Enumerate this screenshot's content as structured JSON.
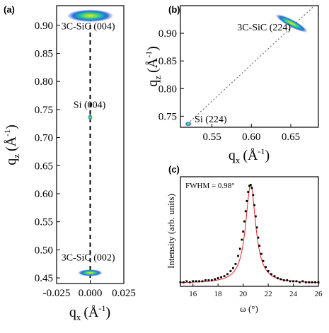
{
  "chart_data": [
    {
      "panel_label": "(a)",
      "type": "scatter",
      "subtype": "reciprocal-space-map",
      "xlabel_base": "q",
      "xlabel_sub": "x",
      "xlabel_unit": "(Å",
      "xlabel_exp": "-1",
      "xlabel_close": ")",
      "ylabel_base": "q",
      "ylabel_sub": "z",
      "ylabel_unit": "(Å",
      "ylabel_exp": "-1",
      "ylabel_close": ")",
      "xlim": [
        -0.025,
        0.025
      ],
      "ylim": [
        0.44,
        0.935
      ],
      "xticks": [
        {
          "v": -0.025,
          "label": "-0.025"
        },
        {
          "v": 0.0,
          "label": "0.000"
        },
        {
          "v": 0.025,
          "label": "0.025"
        }
      ],
      "yticks": [
        {
          "v": 0.45,
          "label": "0.45"
        },
        {
          "v": 0.5,
          "label": "0.50"
        },
        {
          "v": 0.55,
          "label": "0.55"
        },
        {
          "v": 0.6,
          "label": "0.60"
        },
        {
          "v": 0.65,
          "label": "0.65"
        },
        {
          "v": 0.7,
          "label": "0.70"
        },
        {
          "v": 0.75,
          "label": "0.75"
        },
        {
          "v": 0.8,
          "label": "0.80"
        },
        {
          "v": 0.85,
          "label": "0.85"
        },
        {
          "v": 0.9,
          "label": "0.90"
        }
      ],
      "reference_line": {
        "x": 0.0,
        "from": 0.45,
        "to": 0.92,
        "style": "dashed"
      },
      "peaks": [
        {
          "label": "3C-SiC (004)",
          "qx": 0.0,
          "qz": 0.917,
          "width_qx": 0.034,
          "width_qz": 0.022
        },
        {
          "label": "Si (004)",
          "qx": 0.0,
          "qz": 0.736,
          "width_qx": 0.002,
          "width_qz": 0.01
        },
        {
          "label": "3C-SiC (002)",
          "qx": 0.0,
          "qz": 0.459,
          "width_qx": 0.018,
          "width_qz": 0.012
        }
      ],
      "annotations": [
        {
          "text": "3C-SiC (004)",
          "x": -0.0015,
          "y": 0.893
        },
        {
          "text": "Si (004)",
          "x": -0.0005,
          "y": 0.753
        },
        {
          "text": "3C-SiC (002)",
          "x": -0.0015,
          "y": 0.481
        }
      ]
    },
    {
      "panel_label": "(b)",
      "type": "scatter",
      "subtype": "reciprocal-space-map",
      "xlabel_base": "q",
      "xlabel_sub": "x",
      "xlabel_unit": "(Å",
      "xlabel_exp": "-1",
      "xlabel_close": ")",
      "ylabel_base": "q",
      "ylabel_sub": "z",
      "ylabel_unit": "(Å",
      "ylabel_exp": "-1",
      "ylabel_close": ")",
      "xlim": [
        0.51,
        0.685
      ],
      "ylim": [
        0.73,
        0.95
      ],
      "xticks": [
        {
          "v": 0.55,
          "label": "0.55"
        },
        {
          "v": 0.6,
          "label": "0.60"
        },
        {
          "v": 0.65,
          "label": "0.65"
        }
      ],
      "yticks": [
        {
          "v": 0.75,
          "label": "0.75"
        },
        {
          "v": 0.8,
          "label": "0.80"
        },
        {
          "v": 0.85,
          "label": "0.85"
        },
        {
          "v": 0.9,
          "label": "0.90"
        }
      ],
      "reference_line": {
        "from": [
          0.519,
          0.736
        ],
        "to": [
          0.68,
          0.95
        ],
        "style": "dotted"
      },
      "peaks": [
        {
          "label": "3C-SiC (224)",
          "qx": 0.651,
          "qz": 0.918,
          "width_qx": 0.045,
          "width_qz": 0.03,
          "tilt": 28
        },
        {
          "label": "Si (224)",
          "qx": 0.52,
          "qz": 0.736,
          "width_qx": 0.008,
          "width_qz": 0.008
        }
      ],
      "annotations": [
        {
          "text": "3C-SiC (224)",
          "x": 0.582,
          "y": 0.905
        },
        {
          "text": "Si (224)",
          "x": 0.528,
          "y": 0.739
        }
      ]
    },
    {
      "panel_label": "(c)",
      "type": "line",
      "subtype": "rocking-curve",
      "xlabel": "ω (°)",
      "ylabel": "Intensity (arb. units)",
      "xlim": [
        15,
        26
      ],
      "ylim": [
        0,
        1.08
      ],
      "xticks": [
        16,
        18,
        20,
        22,
        24,
        26
      ],
      "annotation": "FWHM = 0.98°",
      "fit": {
        "shape": "lorentzian",
        "center": 20.6,
        "fwhm": 0.98,
        "amplitude": 1.0,
        "baseline": 0.03
      },
      "measured_x": [
        15.0,
        15.25,
        15.5,
        15.75,
        16.0,
        16.25,
        16.5,
        16.75,
        17.0,
        17.25,
        17.5,
        17.75,
        18.0,
        18.25,
        18.5,
        18.75,
        19.0,
        19.2,
        19.4,
        19.6,
        19.75,
        19.9,
        20.0,
        20.1,
        20.2,
        20.3,
        20.4,
        20.5,
        20.6,
        20.7,
        20.8,
        20.9,
        21.0,
        21.1,
        21.2,
        21.3,
        21.45,
        21.6,
        21.8,
        22.0,
        22.25,
        22.5,
        22.75,
        23.0,
        23.25,
        23.5,
        23.75,
        24.0,
        24.25,
        24.5,
        24.75,
        25.0,
        25.25,
        25.5,
        25.75,
        26.0
      ],
      "measured_y": [
        0.04,
        0.04,
        0.05,
        0.04,
        0.05,
        0.05,
        0.05,
        0.05,
        0.06,
        0.06,
        0.06,
        0.07,
        0.08,
        0.09,
        0.1,
        0.12,
        0.15,
        0.18,
        0.22,
        0.3,
        0.37,
        0.46,
        0.54,
        0.64,
        0.74,
        0.84,
        0.93,
        0.99,
        1.0,
        0.97,
        0.9,
        0.8,
        0.69,
        0.58,
        0.48,
        0.4,
        0.32,
        0.25,
        0.19,
        0.15,
        0.12,
        0.1,
        0.08,
        0.07,
        0.06,
        0.06,
        0.05,
        0.05,
        0.05,
        0.04,
        0.05,
        0.04,
        0.04,
        0.04,
        0.04,
        0.04
      ],
      "colors": {
        "points": "#000000",
        "fit": "#e8202a"
      }
    }
  ]
}
